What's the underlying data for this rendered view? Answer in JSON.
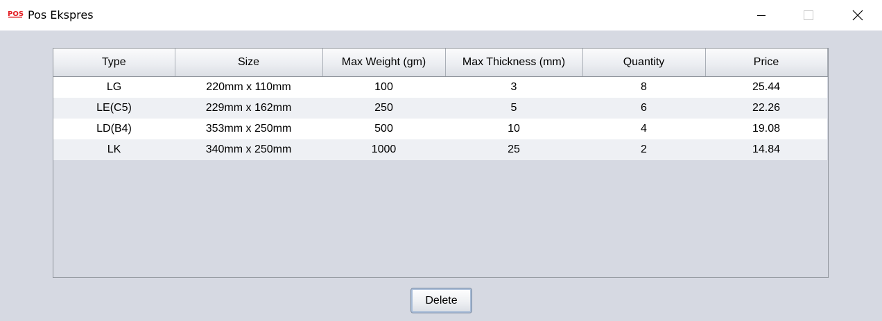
{
  "window": {
    "title": "Pos Ekspres",
    "logo_text": "POS",
    "accent_color": "#e31e24"
  },
  "table": {
    "columns": [
      "Type",
      "Size",
      "Max Weight (gm)",
      "Max Thickness (mm)",
      "Quantity",
      "Price"
    ],
    "rows": [
      [
        "LG",
        "220mm x 110mm",
        "100",
        "3",
        "8",
        "25.44"
      ],
      [
        "LE(C5)",
        "229mm x 162mm",
        "250",
        "5",
        "6",
        "22.26"
      ],
      [
        "LD(B4)",
        "353mm x 250mm",
        "500",
        "10",
        "4",
        "19.08"
      ],
      [
        "LK",
        "340mm x 250mm",
        "1000",
        "25",
        "2",
        "14.84"
      ]
    ]
  },
  "actions": {
    "delete_label": "Delete"
  }
}
